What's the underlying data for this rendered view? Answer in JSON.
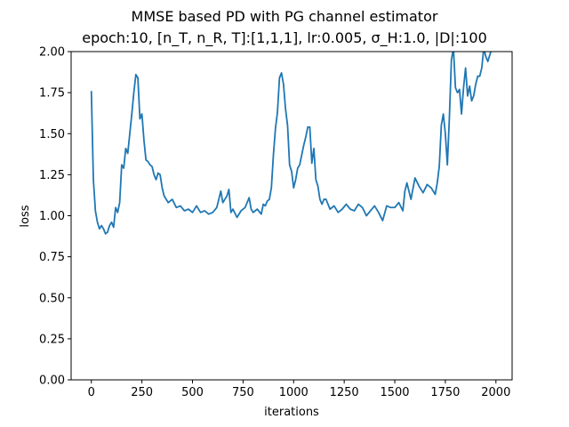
{
  "chart_data": {
    "type": "line",
    "title": "MMSE based PD with PG channel estimator",
    "subtitle": "epoch:10, [n_T, n_R, T]:[1,1,1], lr:0.005, σ_H:1.0, |D|:100",
    "xlabel": "iterations",
    "ylabel": "loss",
    "xlim": [
      -100,
      2080
    ],
    "ylim": [
      0.0,
      2.0
    ],
    "xticks": [
      0,
      250,
      500,
      750,
      1000,
      1250,
      1500,
      1750,
      2000
    ],
    "yticks": [
      0.0,
      0.25,
      0.5,
      0.75,
      1.0,
      1.25,
      1.5,
      1.75,
      2.0
    ],
    "xtick_labels": [
      "0",
      "250",
      "500",
      "750",
      "1000",
      "1250",
      "1500",
      "1750",
      "2000"
    ],
    "ytick_labels": [
      "0.00",
      "0.25",
      "0.50",
      "0.75",
      "1.00",
      "1.25",
      "1.50",
      "1.75",
      "2.00"
    ],
    "grid": false,
    "colors": {
      "line": "#1f77b4",
      "axes": "#000000"
    },
    "series": [
      {
        "x": [
          0,
          10,
          20,
          30,
          40,
          50,
          60,
          70,
          80,
          90,
          100,
          110,
          120,
          130,
          140,
          150,
          160,
          170,
          180,
          190,
          200,
          210,
          220,
          230,
          240,
          250,
          260,
          270,
          280,
          290,
          300,
          310,
          320,
          330,
          340,
          350,
          360,
          380,
          400,
          420,
          440,
          460,
          480,
          500,
          520,
          540,
          560,
          580,
          600,
          620,
          640,
          650,
          660,
          670,
          680,
          690,
          700,
          720,
          740,
          760,
          780,
          790,
          800,
          820,
          840,
          850,
          860,
          870,
          880,
          890,
          900,
          910,
          920,
          930,
          940,
          950,
          960,
          970,
          980,
          990,
          1000,
          1010,
          1020,
          1030,
          1040,
          1050,
          1060,
          1070,
          1080,
          1090,
          1100,
          1110,
          1120,
          1130,
          1140,
          1150,
          1160,
          1180,
          1200,
          1220,
          1240,
          1260,
          1280,
          1300,
          1320,
          1340,
          1360,
          1380,
          1400,
          1420,
          1440,
          1460,
          1480,
          1500,
          1520,
          1540,
          1550,
          1560,
          1580,
          1600,
          1620,
          1640,
          1660,
          1680,
          1700,
          1710,
          1720,
          1730,
          1740,
          1750,
          1760,
          1770,
          1780,
          1790,
          1800,
          1810,
          1820,
          1830,
          1840,
          1850,
          1860,
          1870,
          1880,
          1890,
          1900,
          1910,
          1920,
          1930,
          1940,
          1950,
          1960,
          1970,
          1980
        ],
        "y": [
          1.76,
          1.22,
          1.03,
          0.96,
          0.92,
          0.94,
          0.92,
          0.89,
          0.9,
          0.94,
          0.96,
          0.93,
          1.05,
          1.02,
          1.08,
          1.31,
          1.29,
          1.41,
          1.38,
          1.5,
          1.62,
          1.75,
          1.86,
          1.84,
          1.59,
          1.62,
          1.46,
          1.34,
          1.33,
          1.31,
          1.3,
          1.25,
          1.22,
          1.26,
          1.25,
          1.17,
          1.12,
          1.08,
          1.1,
          1.05,
          1.06,
          1.03,
          1.04,
          1.02,
          1.06,
          1.02,
          1.03,
          1.01,
          1.02,
          1.05,
          1.15,
          1.08,
          1.1,
          1.12,
          1.16,
          1.02,
          1.04,
          0.99,
          1.03,
          1.05,
          1.11,
          1.04,
          1.02,
          1.04,
          1.01,
          1.07,
          1.06,
          1.09,
          1.1,
          1.17,
          1.37,
          1.53,
          1.63,
          1.84,
          1.87,
          1.8,
          1.65,
          1.55,
          1.31,
          1.27,
          1.17,
          1.22,
          1.29,
          1.31,
          1.37,
          1.43,
          1.48,
          1.54,
          1.54,
          1.32,
          1.41,
          1.22,
          1.18,
          1.1,
          1.07,
          1.1,
          1.1,
          1.04,
          1.06,
          1.02,
          1.04,
          1.07,
          1.04,
          1.03,
          1.07,
          1.05,
          1.0,
          1.03,
          1.06,
          1.02,
          0.97,
          1.06,
          1.05,
          1.05,
          1.08,
          1.03,
          1.15,
          1.2,
          1.1,
          1.23,
          1.18,
          1.14,
          1.19,
          1.17,
          1.13,
          1.2,
          1.3,
          1.55,
          1.62,
          1.5,
          1.31,
          1.6,
          1.95,
          2.02,
          1.78,
          1.75,
          1.77,
          1.62,
          1.78,
          1.9,
          1.73,
          1.79,
          1.7,
          1.73,
          1.8,
          1.85,
          1.85,
          1.9,
          2.02,
          1.97,
          1.94,
          1.98,
          2.02
        ]
      }
    ]
  }
}
